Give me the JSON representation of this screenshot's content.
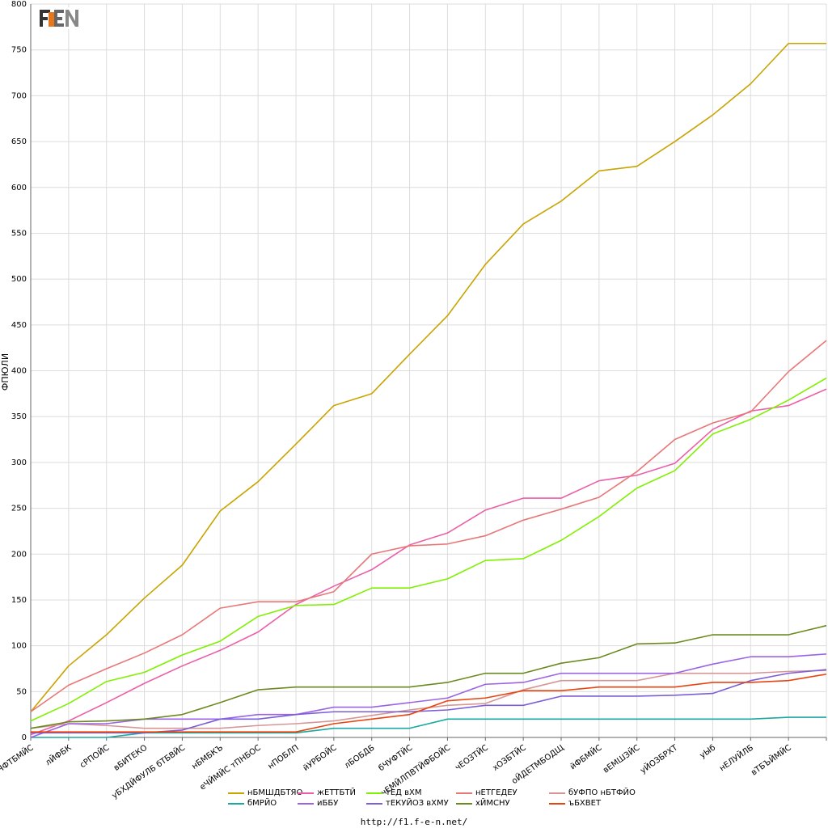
{
  "chart_data": {
    "type": "line",
    "ylabel": "ФПЮЛИ",
    "ylim": [
      0,
      800
    ],
    "yticks": [
      0,
      50,
      100,
      150,
      200,
      250,
      300,
      350,
      400,
      450,
      500,
      550,
      600,
      650,
      700,
      750,
      800
    ],
    "grid": true,
    "legend_position": "bottom",
    "categories": [
      "бЧФТБМЙС",
      "лЙФБК",
      "сРПОЙС",
      "вБИТЕКО",
      "уБХДЙФУЛБ бТБВЙС",
      "нБМБКЪ",
      "еЧЙМЙС тПНБОС",
      "нПОБЛП",
      "йУРБОЙС",
      "лБОБДБ",
      "бЧУФТЙС",
      "чЕМЙЛПВТЙФБОЙС",
      "чЕОЗТЙС",
      "хОЗБТЙС",
      "оЙДЕТМБОДЩ",
      "йФБМЙС",
      "вЕМШЗЙС",
      "уЙОЗБРХТ",
      "уЫб",
      "нЕЛУЙЛБ",
      "вТБЪЙМЙС",
      ""
    ],
    "series": [
      {
        "name": "нБМШДБТЯО",
        "color": "#c8a400",
        "values": [
          28,
          78,
          112,
          152,
          188,
          247,
          279,
          320,
          362,
          375,
          418,
          460,
          516,
          560,
          585,
          618,
          623,
          650,
          679,
          713,
          757,
          757
        ]
      },
      {
        "name": "жЕТТБТЙ",
        "color": "#ec5fa8",
        "values": [
          3,
          18,
          38,
          59,
          78,
          95,
          115,
          145,
          165,
          183,
          210,
          223,
          248,
          261,
          261,
          280,
          286,
          299,
          336,
          356,
          362,
          380
        ]
      },
      {
        "name": "тЕД вХМ",
        "color": "#7ff000",
        "values": [
          18,
          37,
          61,
          71,
          90,
          105,
          132,
          144,
          145,
          163,
          163,
          173,
          193,
          195,
          215,
          241,
          272,
          291,
          331,
          347,
          368,
          392
        ]
      },
      {
        "name": "нЕТГЕДЕУ",
        "color": "#e87878",
        "values": [
          28,
          57,
          75,
          92,
          112,
          141,
          148,
          148,
          159,
          200,
          209,
          211,
          220,
          237,
          249,
          262,
          290,
          325,
          343,
          355,
          399,
          433
        ]
      },
      {
        "name": "бУФПО нБТФЙО",
        "color": "#d79696",
        "values": [
          10,
          15,
          13,
          10,
          10,
          10,
          13,
          15,
          18,
          24,
          30,
          35,
          37,
          52,
          62,
          62,
          62,
          70,
          70,
          70,
          72,
          73
        ]
      },
      {
        "name": "бМРЙО",
        "color": "#1ba8a0",
        "values": [
          0,
          0,
          0,
          5,
          5,
          5,
          5,
          5,
          10,
          10,
          10,
          20,
          20,
          20,
          20,
          20,
          20,
          20,
          20,
          20,
          22,
          22
        ]
      },
      {
        "name": "иББУ",
        "color": "#9b63e5",
        "values": [
          0,
          15,
          15,
          20,
          20,
          20,
          25,
          25,
          33,
          33,
          38,
          43,
          58,
          60,
          70,
          70,
          70,
          70,
          80,
          88,
          88,
          91
        ]
      },
      {
        "name": "тЕКУЙОЗ вХМУ",
        "color": "#7b5fd8",
        "values": [
          5,
          5,
          5,
          5,
          8,
          20,
          20,
          25,
          28,
          28,
          28,
          30,
          35,
          35,
          45,
          45,
          45,
          46,
          48,
          62,
          70,
          74
        ]
      },
      {
        "name": "хЙМСНУ",
        "color": "#6a8a20",
        "values": [
          10,
          17,
          18,
          20,
          25,
          38,
          52,
          55,
          55,
          55,
          55,
          60,
          70,
          70,
          81,
          87,
          102,
          103,
          112,
          112,
          112,
          122
        ]
      },
      {
        "name": "ъБХВЕТ",
        "color": "#e84410",
        "values": [
          6,
          6,
          6,
          6,
          6,
          6,
          6,
          6,
          15,
          20,
          25,
          40,
          43,
          51,
          51,
          55,
          55,
          55,
          60,
          60,
          62,
          69
        ]
      }
    ]
  },
  "footer": {
    "url": "http://f1.f-e-n.net/"
  }
}
